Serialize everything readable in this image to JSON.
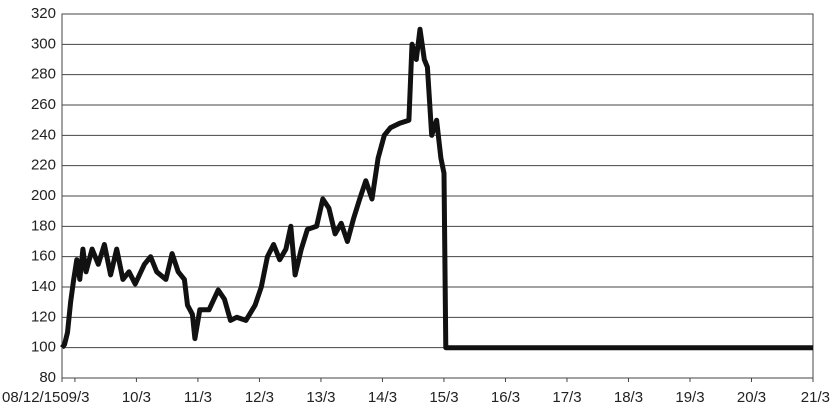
{
  "chart_data": {
    "type": "line",
    "x": [
      2008.96,
      2009.0,
      2009.05,
      2009.1,
      2009.15,
      2009.2,
      2009.25,
      2009.3,
      2009.35,
      2009.45,
      2009.55,
      2009.65,
      2009.75,
      2009.85,
      2009.95,
      2010.05,
      2010.15,
      2010.3,
      2010.4,
      2010.5,
      2010.65,
      2010.75,
      2010.85,
      2010.95,
      2011.0,
      2011.08,
      2011.12,
      2011.2,
      2011.35,
      2011.5,
      2011.6,
      2011.7,
      2011.8,
      2011.95,
      2012.1,
      2012.2,
      2012.3,
      2012.4,
      2012.5,
      2012.6,
      2012.68,
      2012.75,
      2012.85,
      2012.95,
      2013.1,
      2013.2,
      2013.3,
      2013.4,
      2013.5,
      2013.6,
      2013.7,
      2013.8,
      2013.9,
      2014.0,
      2014.1,
      2014.2,
      2014.3,
      2014.45,
      2014.6,
      2014.65,
      2014.72,
      2014.78,
      2014.85,
      2014.9,
      2014.97,
      2015.05,
      2015.12,
      2015.17,
      2015.2,
      2021.17
    ],
    "series": [
      {
        "color": "#111111",
        "values": [
          100,
          102,
          110,
          130,
          145,
          158,
          145,
          165,
          150,
          165,
          155,
          168,
          148,
          165,
          145,
          150,
          142,
          155,
          160,
          150,
          145,
          162,
          150,
          145,
          128,
          122,
          106,
          125,
          125,
          138,
          132,
          118,
          120,
          118,
          128,
          140,
          160,
          168,
          158,
          165,
          180,
          148,
          165,
          178,
          180,
          198,
          192,
          175,
          182,
          170,
          185,
          198,
          210,
          198,
          225,
          240,
          245,
          248,
          250,
          300,
          290,
          310,
          290,
          285,
          240,
          250,
          225,
          215,
          100,
          100
        ]
      }
    ],
    "xlim": [
      2008.96,
      2021.17
    ],
    "xticks": [
      {
        "value": 2008.96,
        "label": "08/12/15"
      },
      {
        "value": 2009.17,
        "label": "09/3"
      },
      {
        "value": 2010.17,
        "label": "10/3"
      },
      {
        "value": 2011.17,
        "label": "11/3"
      },
      {
        "value": 2012.17,
        "label": "12/3"
      },
      {
        "value": 2013.17,
        "label": "13/3"
      },
      {
        "value": 2014.17,
        "label": "14/3"
      },
      {
        "value": 2015.17,
        "label": "15/3"
      },
      {
        "value": 2016.17,
        "label": "16/3"
      },
      {
        "value": 2017.17,
        "label": "17/3"
      },
      {
        "value": 2018.17,
        "label": "18/3"
      },
      {
        "value": 2019.17,
        "label": "19/3"
      },
      {
        "value": 2020.17,
        "label": "20/3"
      },
      {
        "value": 2021.17,
        "label": "21/3"
      }
    ],
    "ylim": [
      80,
      320
    ],
    "yticks": [
      80,
      100,
      120,
      140,
      160,
      180,
      200,
      220,
      240,
      260,
      280,
      300,
      320
    ],
    "grid": true
  }
}
